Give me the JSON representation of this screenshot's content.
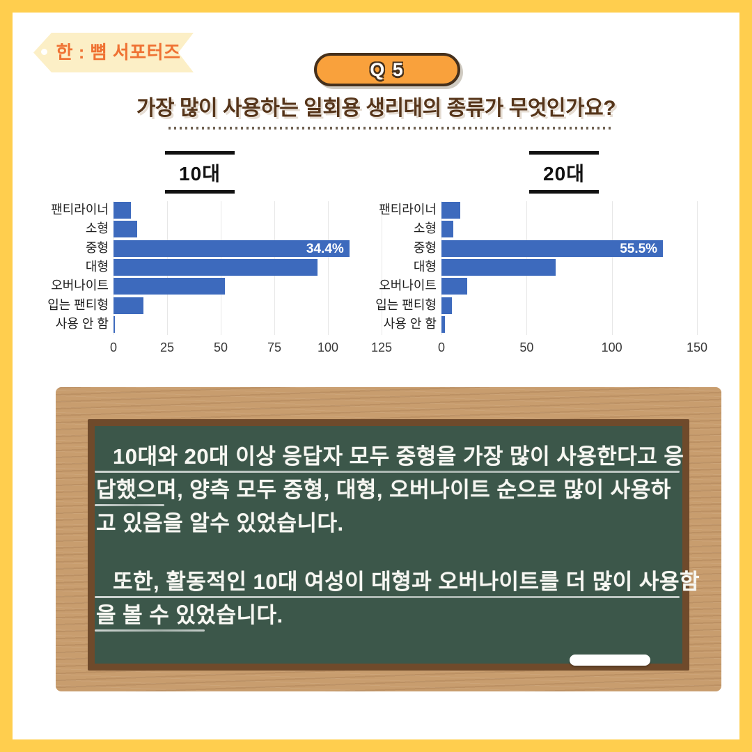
{
  "header": {
    "logo_text": "한 : 뼘 서포터즈",
    "badge_label": "Q 5",
    "question": "가장 많이 사용하는 일회용 생리대의 종류가 무엇인가요?"
  },
  "chart_data": [
    {
      "type": "bar",
      "orientation": "horizontal",
      "title": "10대",
      "categories": [
        "팬티라이너",
        "소형",
        "중형",
        "대형",
        "오버나이트",
        "입는 팬티형",
        "사용 안 함"
      ],
      "values": [
        8,
        11,
        110,
        95,
        52,
        14,
        0.5
      ],
      "value_labels": [
        "",
        "",
        "34.4%",
        "",
        "",
        "",
        ""
      ],
      "xticks": [
        0,
        25,
        50,
        75,
        100,
        125
      ],
      "xlim": [
        0,
        125
      ],
      "grid": true,
      "legend": "none",
      "bar_color": "#3D6ABD"
    },
    {
      "type": "bar",
      "orientation": "horizontal",
      "title": "20대",
      "categories": [
        "팬티라이너",
        "소형",
        "중형",
        "대형",
        "오버나이트",
        "입는 팬티형",
        "사용 안 함"
      ],
      "values": [
        11,
        7,
        130,
        67,
        15,
        6,
        2
      ],
      "value_labels": [
        "",
        "",
        "55.5%",
        "",
        "",
        "",
        ""
      ],
      "xticks": [
        0,
        50,
        100,
        150
      ],
      "xlim": [
        0,
        150
      ],
      "grid": true,
      "legend": "none",
      "bar_color": "#3D6ABD"
    }
  ],
  "board": {
    "paragraphs": [
      {
        "lines": [
          {
            "text": "10대와 20대 이상 응답자 모두 중형을 가장 많이 사용한다고 응",
            "indent": true,
            "underline": "full"
          },
          {
            "text": "답했으며, 양측 모두 중형, 대형, 오버나이트 순으로 많이 사용하",
            "indent": false,
            "underline": "short"
          },
          {
            "text": "고 있음을 알수 있었습니다.",
            "indent": false,
            "underline": "none"
          }
        ]
      },
      {
        "lines": [
          {
            "text": "또한, 활동적인 10대 여성이 대형과 오버나이트를 더 많이 사용함",
            "indent": true,
            "underline": "full"
          },
          {
            "text": "을 볼 수 있었습니다.",
            "indent": false,
            "underline": "medium"
          }
        ]
      }
    ]
  },
  "colors": {
    "page_border": "#FFCE4E",
    "ribbon_fill": "#FCEFC6",
    "ribbon_text": "#EF7233",
    "badge_fill": "#F9A13C",
    "badge_border": "#45301C",
    "title_text": "#56351A",
    "bar_blue": "#3D6ABD",
    "board_green": "#3C574A",
    "frame_wood": "#C89D6E",
    "frame_bevel": "#6F4A2B"
  }
}
